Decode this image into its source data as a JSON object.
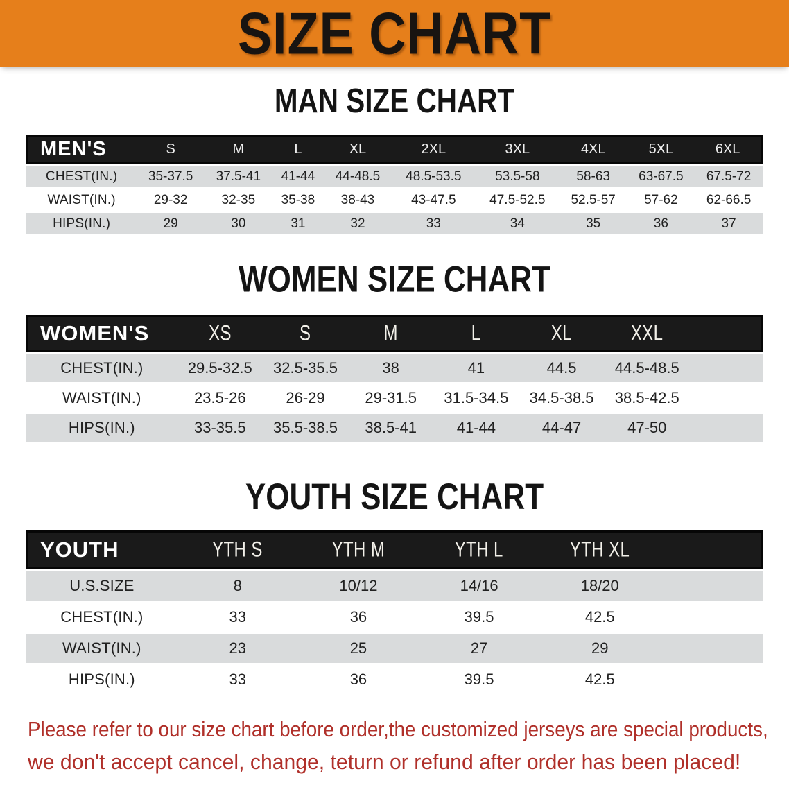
{
  "banner": {
    "title": "SIZE CHART"
  },
  "sections": [
    {
      "id": "men",
      "title": "MAN SIZE CHART",
      "group_label": "MEN'S",
      "columns": [
        "S",
        "M",
        "L",
        "XL",
        "2XL",
        "3XL",
        "4XL",
        "5XL",
        "6XL"
      ],
      "rows": [
        {
          "label": "CHEST(IN.)",
          "values": [
            "35-37.5",
            "37.5-41",
            "41-44",
            "44-48.5",
            "48.5-53.5",
            "53.5-58",
            "58-63",
            "63-67.5",
            "67.5-72"
          ]
        },
        {
          "label": "WAIST(IN.)",
          "values": [
            "29-32",
            "32-35",
            "35-38",
            "38-43",
            "43-47.5",
            "47.5-52.5",
            "52.5-57",
            "57-62",
            "62-66.5"
          ]
        },
        {
          "label": "HIPS(IN.)",
          "values": [
            "29",
            "30",
            "31",
            "32",
            "33",
            "34",
            "35",
            "36",
            "37"
          ]
        }
      ]
    },
    {
      "id": "women",
      "title": "WOMEN SIZE CHART",
      "group_label": "WOMEN'S",
      "columns": [
        "XS",
        "S",
        "M",
        "L",
        "XL",
        "XXL"
      ],
      "rows": [
        {
          "label": "CHEST(IN.)",
          "values": [
            "29.5-32.5",
            "32.5-35.5",
            "38",
            "41",
            "44.5",
            "44.5-48.5"
          ]
        },
        {
          "label": "WAIST(IN.)",
          "values": [
            "23.5-26",
            "26-29",
            "29-31.5",
            "31.5-34.5",
            "34.5-38.5",
            "38.5-42.5"
          ]
        },
        {
          "label": "HIPS(IN.)",
          "values": [
            "33-35.5",
            "35.5-38.5",
            "38.5-41",
            "41-44",
            "44-47",
            "47-50"
          ]
        }
      ]
    },
    {
      "id": "youth",
      "title": "YOUTH SIZE CHART",
      "group_label": "YOUTH",
      "columns": [
        "YTH S",
        "YTH M",
        "YTH L",
        "YTH XL"
      ],
      "rows": [
        {
          "label": "U.S.SIZE",
          "values": [
            "8",
            "10/12",
            "14/16",
            "18/20"
          ]
        },
        {
          "label": "CHEST(IN.)",
          "values": [
            "33",
            "36",
            "39.5",
            "42.5"
          ]
        },
        {
          "label": "WAIST(IN.)",
          "values": [
            "23",
            "25",
            "27",
            "29"
          ]
        },
        {
          "label": "HIPS(IN.)",
          "values": [
            "33",
            "36",
            "39.5",
            "42.5"
          ]
        }
      ]
    }
  ],
  "disclaimer": {
    "line1": "Please refer to our size chart before order,the customized jerseys are special products,",
    "line2": "we don't accept cancel, change, teturn or refund after order has been placed!"
  },
  "colors": {
    "banner_bg": "#e67f1b",
    "banner_title_text": "#181411",
    "table_header_bg": "#1a1a1a",
    "table_header_text": "#ffffff",
    "row_stripe": "#d9dbdc",
    "body_text": "#212121",
    "disclaimer_text": "#b0302a"
  }
}
